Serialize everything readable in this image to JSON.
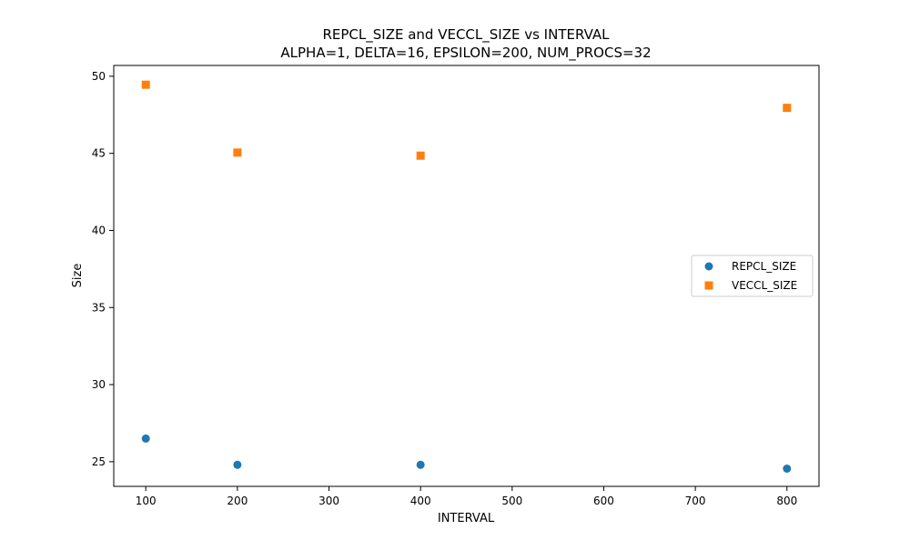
{
  "chart_data": {
    "type": "scatter",
    "title": "REPCL_SIZE and VECCL_SIZE vs INTERVAL",
    "subtitle": "ALPHA=1, DELTA=16, EPSILON=200, NUM_PROCS=32",
    "xlabel": "INTERVAL",
    "ylabel": "Size",
    "xlim": [
      65,
      835
    ],
    "ylim": [
      23.4,
      50.7
    ],
    "xticks": [
      100,
      200,
      300,
      400,
      500,
      600,
      700,
      800
    ],
    "yticks": [
      25,
      30,
      35,
      40,
      45,
      50
    ],
    "xtick_labels": [
      "100",
      "200",
      "300",
      "400",
      "500",
      "600",
      "700",
      "800"
    ],
    "ytick_labels": [
      "25",
      "30",
      "35",
      "40",
      "45",
      "50"
    ],
    "grid": false,
    "legend_position": "center-right",
    "series": [
      {
        "name": "REPCL_SIZE",
        "marker": "circle",
        "color": "#1f77b4",
        "x": [
          100,
          200,
          400,
          800
        ],
        "y": [
          26.5,
          24.8,
          24.8,
          24.55
        ]
      },
      {
        "name": "VECCL_SIZE",
        "marker": "square",
        "color": "#ff7f0e",
        "x": [
          100,
          200,
          400,
          800
        ],
        "y": [
          49.45,
          45.05,
          44.85,
          47.95
        ]
      }
    ]
  }
}
